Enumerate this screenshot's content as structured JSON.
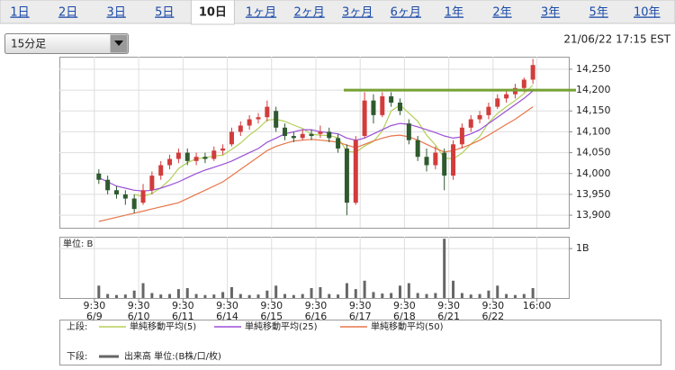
{
  "tabs": {
    "items": [
      "1日",
      "2日",
      "3日",
      "5日",
      "10日",
      "1ヶ月",
      "2ヶ月",
      "3ヶ月",
      "6ヶ月",
      "1年",
      "2年",
      "3年",
      "5年",
      "10年"
    ],
    "selected": 4
  },
  "timeframe": "15分足",
  "timestamp": "21/06/22 17:15 EST",
  "legend": {
    "upper": "上段:",
    "lower": "下段:"
  },
  "chart_data": [
    {
      "type": "candlestick",
      "x": [
        0.1,
        0.3,
        0.5,
        0.7,
        0.9,
        1.1,
        1.3,
        1.5,
        1.7,
        1.9,
        2.1,
        2.3,
        2.5,
        2.7,
        2.9,
        3.1,
        3.3,
        3.5,
        3.7,
        3.9,
        4.1,
        4.3,
        4.5,
        4.7,
        4.9,
        5.1,
        5.3,
        5.5,
        5.7,
        5.9,
        6.1,
        6.3,
        6.5,
        6.7,
        6.9,
        7.1,
        7.3,
        7.5,
        7.7,
        7.9,
        8.1,
        8.3,
        8.5,
        8.7,
        8.9,
        9.1,
        9.3,
        9.5,
        9.7,
        9.9
      ],
      "open": [
        14000,
        13985,
        13960,
        13950,
        13940,
        13930,
        13960,
        13995,
        14020,
        14035,
        14050,
        14030,
        14040,
        14035,
        14055,
        14070,
        14100,
        14115,
        14130,
        14135,
        14150,
        14110,
        14090,
        14085,
        14095,
        14095,
        14100,
        14085,
        14060,
        13930,
        14090,
        14175,
        14140,
        14185,
        14170,
        14120,
        14080,
        14040,
        14020,
        14050,
        13995,
        14070,
        14110,
        14130,
        14140,
        14160,
        14180,
        14190,
        14205,
        14225
      ],
      "high": [
        14010,
        13995,
        13970,
        13960,
        13950,
        13975,
        14005,
        14030,
        14045,
        14060,
        14060,
        14050,
        14050,
        14065,
        14070,
        14110,
        14125,
        14140,
        14145,
        14175,
        14160,
        14120,
        14100,
        14105,
        14105,
        14115,
        14110,
        14095,
        14070,
        14090,
        14195,
        14190,
        14195,
        14195,
        14180,
        14130,
        14090,
        14060,
        14065,
        14060,
        14080,
        14120,
        14140,
        14150,
        14170,
        14190,
        14200,
        14215,
        14230,
        14275
      ],
      "low": [
        13975,
        13950,
        13940,
        13925,
        13905,
        13925,
        13950,
        13985,
        14010,
        14025,
        14020,
        14020,
        14025,
        14030,
        14045,
        14065,
        14090,
        14105,
        14120,
        14125,
        14100,
        14080,
        14075,
        14080,
        14080,
        14085,
        14075,
        14050,
        13900,
        13925,
        14085,
        14120,
        14135,
        14160,
        14140,
        14070,
        14030,
        14005,
        14010,
        13960,
        13985,
        14060,
        14100,
        14120,
        14130,
        14155,
        14170,
        14180,
        14195,
        14215
      ],
      "close": [
        13985,
        13960,
        13950,
        13940,
        13915,
        13960,
        13995,
        14020,
        14035,
        14050,
        14030,
        14040,
        14035,
        14055,
        14060,
        14100,
        14115,
        14130,
        14135,
        14160,
        14110,
        14090,
        14085,
        14095,
        14090,
        14100,
        14085,
        14060,
        13930,
        14080,
        14175,
        14140,
        14185,
        14170,
        14150,
        14080,
        14040,
        14020,
        14050,
        13995,
        14070,
        14110,
        14130,
        14140,
        14160,
        14180,
        14190,
        14205,
        14225,
        14260
      ],
      "up_color": "#d23c3c",
      "down_color": "#2f5a2f",
      "series": [
        {
          "name": "単純移動平均(5)",
          "color": "#b5cf5a",
          "values": [
            null,
            null,
            null,
            null,
            13950,
            13945,
            13952,
            13966,
            13985,
            14012,
            14026,
            14035,
            14038,
            14042,
            14044,
            14058,
            14073,
            14092,
            14108,
            14128,
            14130,
            14125,
            14116,
            14108,
            14094,
            14092,
            14091,
            14086,
            14053,
            14051,
            14066,
            14077,
            14102,
            14150,
            14164,
            14145,
            14125,
            14092,
            14068,
            14037,
            14035,
            14049,
            14071,
            14089,
            14122,
            14144,
            14160,
            14175,
            14192,
            14212
          ]
        },
        {
          "name": "単純移動平均(25)",
          "color": "#9b4fd6",
          "values": [
            13990,
            13980,
            13970,
            13965,
            13960,
            13958,
            13960,
            13965,
            13972,
            13980,
            13990,
            14000,
            14008,
            14015,
            14022,
            14030,
            14040,
            14050,
            14060,
            14075,
            14085,
            14095,
            14100,
            14105,
            14105,
            14100,
            14098,
            14095,
            14085,
            14080,
            14085,
            14095,
            14105,
            14115,
            14120,
            14118,
            14112,
            14105,
            14098,
            14090,
            14085,
            14088,
            14095,
            14105,
            14120,
            14135,
            14150,
            14165,
            14180,
            14198
          ]
        },
        {
          "name": "単純移動平均(50)",
          "color": "#e8764a",
          "values": [
            13885,
            13890,
            13895,
            13900,
            13905,
            13910,
            13915,
            13920,
            13925,
            13930,
            13940,
            13950,
            13960,
            13970,
            13980,
            13995,
            14010,
            14025,
            14040,
            14055,
            14065,
            14072,
            14078,
            14080,
            14082,
            14080,
            14078,
            14075,
            14068,
            14062,
            14070,
            14078,
            14085,
            14090,
            14092,
            14088,
            14080,
            14070,
            14060,
            14052,
            14055,
            14062,
            14070,
            14080,
            14092,
            14105,
            14118,
            14130,
            14145,
            14160
          ]
        }
      ],
      "xlim": [
        -0.79,
        10.71
      ],
      "ylim": [
        13870,
        14280
      ],
      "yticks": [
        {
          "value": 14250,
          "label": "14,250"
        },
        {
          "value": 14200,
          "label": "14,200"
        },
        {
          "value": 14150,
          "label": "14,150"
        },
        {
          "value": 14100,
          "label": "14,100"
        },
        {
          "value": 14050,
          "label": "14,050"
        },
        {
          "value": 14000,
          "label": "14,000"
        },
        {
          "value": 13950,
          "label": "13,950"
        },
        {
          "value": 13900,
          "label": "13,900"
        }
      ],
      "grid": true,
      "hline": {
        "value": 14200,
        "x_start": 5.63,
        "color": "#77a133"
      }
    },
    {
      "type": "bar",
      "unit_label": "単位: B",
      "x": [
        0.1,
        0.3,
        0.5,
        0.7,
        0.9,
        1.1,
        1.3,
        1.5,
        1.7,
        1.9,
        2.1,
        2.3,
        2.5,
        2.7,
        2.9,
        3.1,
        3.3,
        3.5,
        3.7,
        3.9,
        4.1,
        4.3,
        4.5,
        4.7,
        4.9,
        5.1,
        5.3,
        5.5,
        5.7,
        5.9,
        6.1,
        6.3,
        6.5,
        6.7,
        6.9,
        7.1,
        7.3,
        7.5,
        7.7,
        7.9,
        8.1,
        8.3,
        8.5,
        8.7,
        8.9,
        9.1,
        9.3,
        9.5,
        9.7,
        9.9
      ],
      "series": [
        {
          "name": "出来高 単位:(B株/口/枚)",
          "color": "#666666",
          "values": [
            0.25,
            0.08,
            0.06,
            0.07,
            0.15,
            0.3,
            0.1,
            0.07,
            0.08,
            0.18,
            0.2,
            0.08,
            0.06,
            0.07,
            0.12,
            0.22,
            0.08,
            0.06,
            0.07,
            0.15,
            0.25,
            0.08,
            0.06,
            0.08,
            0.2,
            0.22,
            0.08,
            0.07,
            0.3,
            0.18,
            0.35,
            0.12,
            0.09,
            0.1,
            0.25,
            0.3,
            0.1,
            0.08,
            0.1,
            1.2,
            0.35,
            0.1,
            0.07,
            0.08,
            0.15,
            0.25,
            0.08,
            0.06,
            0.08,
            0.2
          ]
        }
      ],
      "xlim": [
        -0.79,
        10.71
      ],
      "ylim": [
        0,
        1.24
      ],
      "yticks": [
        {
          "value": 1,
          "label": "1B"
        }
      ],
      "xticks": [
        {
          "value": 0,
          "label": "9:30\n6/9"
        },
        {
          "value": 1,
          "label": "9:30\n6/10"
        },
        {
          "value": 2,
          "label": "9:30\n6/11"
        },
        {
          "value": 3,
          "label": "9:30\n6/14"
        },
        {
          "value": 4,
          "label": "9:30\n6/15"
        },
        {
          "value": 5,
          "label": "9:30\n6/16"
        },
        {
          "value": 6,
          "label": "9:30\n6/17"
        },
        {
          "value": 7,
          "label": "9:30\n6/18"
        },
        {
          "value": 8,
          "label": "9:30\n6/21"
        },
        {
          "value": 9,
          "label": "9:30\n6/22"
        },
        {
          "value": 9.99,
          "label": "16:00"
        }
      ],
      "grid": true
    }
  ]
}
